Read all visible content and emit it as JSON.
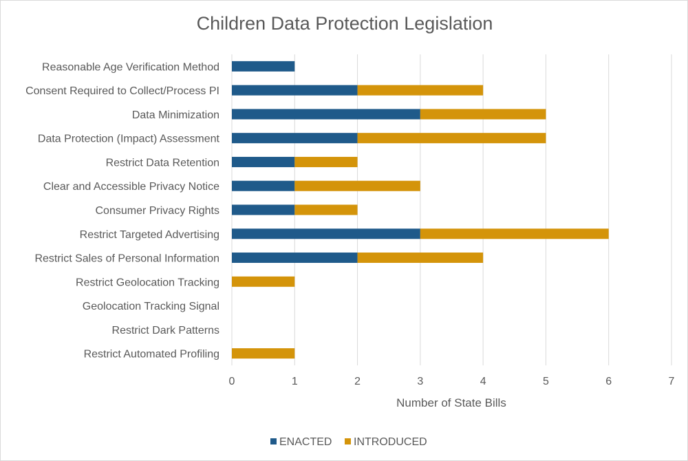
{
  "chart_data": {
    "type": "bar",
    "orientation": "horizontal",
    "stacked": true,
    "title": "Children Data Protection Legislation",
    "xlabel": "Number of State Bills",
    "ylabel": "",
    "xlim": [
      0,
      7
    ],
    "x_ticks": [
      "0",
      "1",
      "2",
      "3",
      "4",
      "5",
      "6",
      "7"
    ],
    "grid": "vertical",
    "legend_position": "bottom",
    "categories": [
      "Reasonable Age Verification Method",
      "Consent Required to Collect/Process PI",
      "Data Minimization",
      "Data Protection (Impact) Assessment",
      "Restrict Data Retention",
      "Clear and Accessible Privacy Notice",
      "Consumer Privacy Rights",
      "Restrict Targeted Advertising",
      "Restrict Sales of Personal Information",
      "Restrict Geolocation Tracking",
      "Geolocation Tracking Signal",
      "Restrict Dark Patterns",
      "Restrict Automated Profiling"
    ],
    "series": [
      {
        "name": "ENACTED",
        "color": "#1f5a8a",
        "values": [
          1,
          2,
          3,
          2,
          1,
          1,
          1,
          3,
          2,
          0,
          0,
          0,
          0
        ]
      },
      {
        "name": "INTRODUCED",
        "color": "#d4940a",
        "values": [
          0,
          2,
          2,
          3,
          1,
          2,
          1,
          3,
          2,
          1,
          0,
          0,
          1
        ]
      }
    ]
  }
}
